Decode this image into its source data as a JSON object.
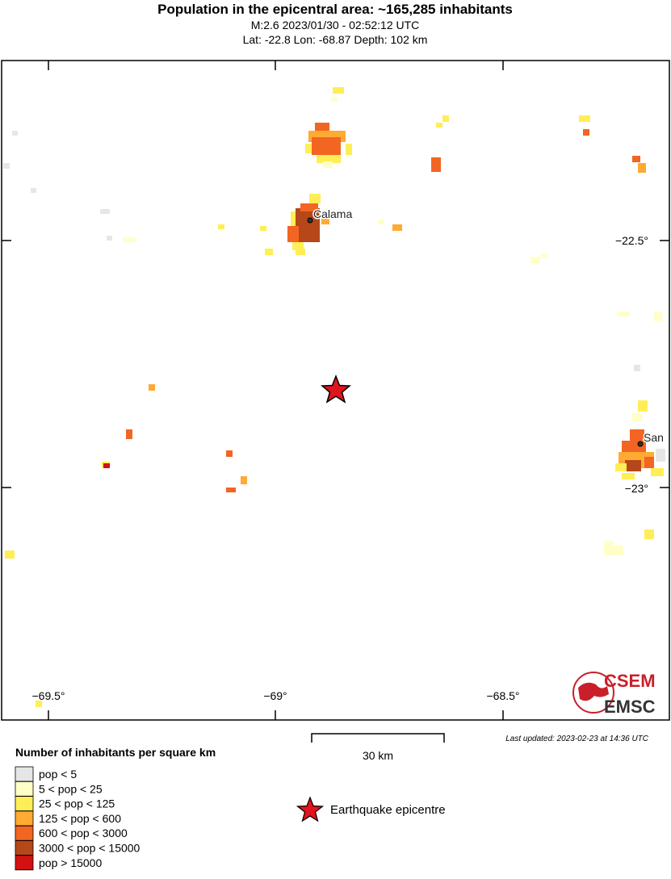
{
  "header": {
    "title": "Population in the epicentral area: ~165,285 inhabitants",
    "line1": "M:2.6 2023/01/30 - 02:52:12 UTC",
    "line2": "Lat: -22.8 Lon: -68.87 Depth: 102 km"
  },
  "map": {
    "lon_labels": [
      "−69.5°",
      "−69°",
      "−68.5°"
    ],
    "lat_labels": [
      "−22.5°",
      "−23°"
    ],
    "cities": [
      "Calama",
      "San"
    ],
    "scale_label": "30 km",
    "updated": "Last updated: 2023-02-23 at 14:36 UTC"
  },
  "legend": {
    "title": "Number of inhabitants per square km",
    "items": [
      {
        "label": "pop < 5",
        "color": "#e6e6e6"
      },
      {
        "label": "5 < pop < 25",
        "color": "#ffffc8"
      },
      {
        "label": "25 < pop < 125",
        "color": "#ffee55"
      },
      {
        "label": "125 < pop < 600",
        "color": "#ffaa33"
      },
      {
        "label": "600 < pop < 3000",
        "color": "#f26522"
      },
      {
        "label": "3000 < pop < 15000",
        "color": "#b5471a"
      },
      {
        "label": "pop > 15000",
        "color": "#d41111"
      }
    ],
    "epicentre_label": "Earthquake epicentre"
  },
  "logo": {
    "top": "CSEM",
    "bottom": "EMSC"
  }
}
